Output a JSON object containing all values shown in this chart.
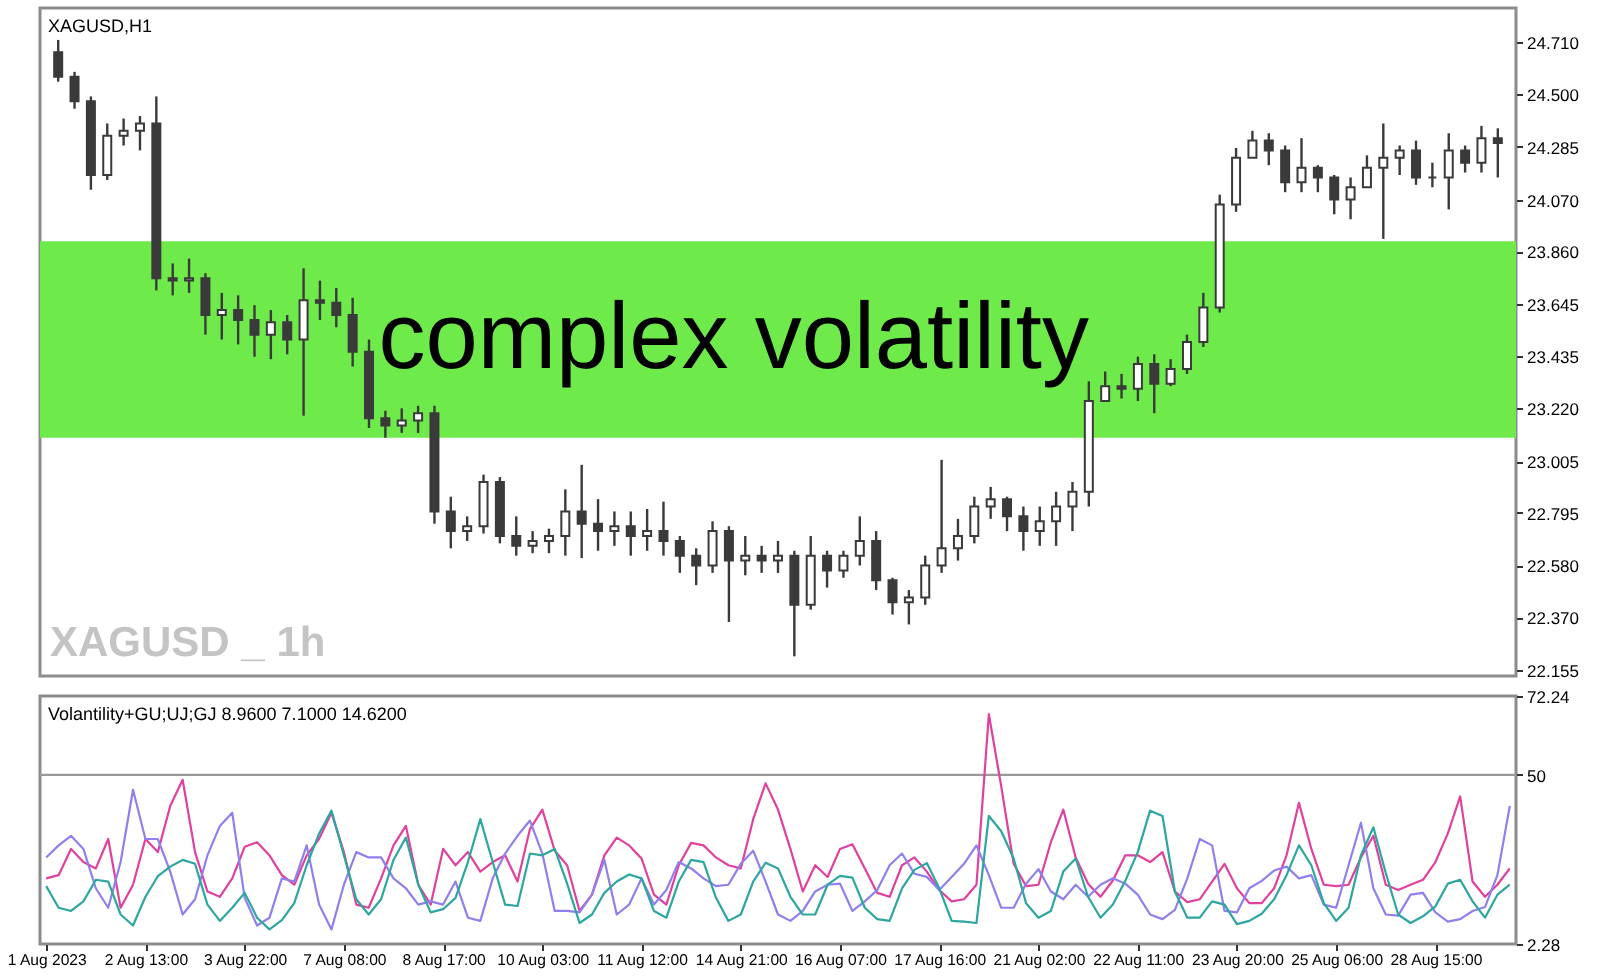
{
  "chart_data": [
    {
      "type": "candlestick",
      "title": "XAGUSD,H1",
      "tick_labels": "y",
      "categories": [
        null,
        null,
        null,
        null,
        null,
        null,
        null,
        null,
        null,
        null,
        null,
        null,
        null,
        null,
        null,
        null,
        null,
        null,
        null,
        null,
        null,
        null,
        null,
        null,
        null,
        null,
        null,
        null,
        null,
        null,
        null,
        null,
        null,
        null,
        null,
        null,
        null,
        null,
        null,
        null,
        null,
        null,
        null,
        null,
        null,
        null,
        null,
        null,
        null,
        null,
        null,
        null,
        null,
        null,
        null,
        null,
        null,
        null,
        null,
        null,
        null,
        null,
        null,
        null,
        null,
        null,
        null,
        null,
        null,
        null,
        null,
        null,
        null,
        null,
        null,
        null,
        null,
        null,
        null,
        null,
        null,
        null,
        null,
        null,
        null,
        null,
        null,
        null,
        null
      ],
      "series": [
        {
          "color": "#3a3a3a",
          "ohlc": [
            [
              24.67,
              24.72,
              24.55,
              24.57
            ],
            [
              24.57,
              24.59,
              24.44,
              24.47
            ],
            [
              24.47,
              24.49,
              24.11,
              24.17
            ],
            [
              24.17,
              24.38,
              24.15,
              24.33
            ],
            [
              24.33,
              24.4,
              24.29,
              24.35
            ],
            [
              24.35,
              24.41,
              24.27,
              24.38
            ],
            [
              24.38,
              24.49,
              23.7,
              23.75
            ],
            [
              23.75,
              23.81,
              23.68,
              23.74
            ],
            [
              23.74,
              23.83,
              23.69,
              23.75
            ],
            [
              23.75,
              23.77,
              23.52,
              23.6
            ],
            [
              23.6,
              23.69,
              23.5,
              23.62
            ],
            [
              23.62,
              23.68,
              23.48,
              23.58
            ],
            [
              23.58,
              23.64,
              23.43,
              23.52
            ],
            [
              23.52,
              23.62,
              23.42,
              23.57
            ],
            [
              23.57,
              23.6,
              23.44,
              23.5
            ],
            [
              23.5,
              23.79,
              23.19,
              23.66
            ],
            [
              23.66,
              23.74,
              23.58,
              23.65
            ],
            [
              23.65,
              23.71,
              23.55,
              23.6
            ],
            [
              23.6,
              23.67,
              23.39,
              23.45
            ],
            [
              23.45,
              23.5,
              23.14,
              23.18
            ],
            [
              23.18,
              23.21,
              23.1,
              23.15
            ],
            [
              23.15,
              23.22,
              23.12,
              23.17
            ],
            [
              23.17,
              23.23,
              23.12,
              23.2
            ],
            [
              23.2,
              23.23,
              22.75,
              22.8
            ],
            [
              22.8,
              22.86,
              22.65,
              22.72
            ],
            [
              22.72,
              22.78,
              22.68,
              22.74
            ],
            [
              22.74,
              22.95,
              22.71,
              22.92
            ],
            [
              22.92,
              22.94,
              22.67,
              22.7
            ],
            [
              22.7,
              22.78,
              22.62,
              22.66
            ],
            [
              22.66,
              22.72,
              22.63,
              22.68
            ],
            [
              22.68,
              22.73,
              22.63,
              22.7
            ],
            [
              22.7,
              22.89,
              22.62,
              22.8
            ],
            [
              22.8,
              22.99,
              22.61,
              22.75
            ],
            [
              22.75,
              22.85,
              22.64,
              22.72
            ],
            [
              22.72,
              22.8,
              22.66,
              22.74
            ],
            [
              22.74,
              22.8,
              22.62,
              22.7
            ],
            [
              22.7,
              22.81,
              22.64,
              22.72
            ],
            [
              22.72,
              22.84,
              22.62,
              22.68
            ],
            [
              22.68,
              22.7,
              22.55,
              22.62
            ],
            [
              22.62,
              22.65,
              22.5,
              22.58
            ],
            [
              22.58,
              22.76,
              22.55,
              22.72
            ],
            [
              22.72,
              22.74,
              22.35,
              22.6
            ],
            [
              22.6,
              22.7,
              22.54,
              22.62
            ],
            [
              22.62,
              22.66,
              22.55,
              22.6
            ],
            [
              22.6,
              22.68,
              22.55,
              22.62
            ],
            [
              22.62,
              22.64,
              22.21,
              22.42
            ],
            [
              22.42,
              22.7,
              22.4,
              22.62
            ],
            [
              22.62,
              22.64,
              22.49,
              22.56
            ],
            [
              22.56,
              22.64,
              22.53,
              22.62
            ],
            [
              22.62,
              22.78,
              22.58,
              22.68
            ],
            [
              22.68,
              22.72,
              22.48,
              22.52
            ],
            [
              22.52,
              22.53,
              22.38,
              22.43
            ],
            [
              22.43,
              22.48,
              22.34,
              22.45
            ],
            [
              22.45,
              22.62,
              22.42,
              22.58
            ],
            [
              22.58,
              23.01,
              22.55,
              22.65
            ],
            [
              22.65,
              22.77,
              22.6,
              22.7
            ],
            [
              22.7,
              22.86,
              22.67,
              22.82
            ],
            [
              22.82,
              22.9,
              22.77,
              22.85
            ],
            [
              22.85,
              22.86,
              22.72,
              22.78
            ],
            [
              22.78,
              22.82,
              22.64,
              22.72
            ],
            [
              22.72,
              22.82,
              22.66,
              22.76
            ],
            [
              22.76,
              22.88,
              22.66,
              22.82
            ],
            [
              22.82,
              22.92,
              22.72,
              22.88
            ],
            [
              22.88,
              23.33,
              22.82,
              23.25
            ],
            [
              23.25,
              23.37,
              23.25,
              23.31
            ],
            [
              23.31,
              23.36,
              23.26,
              23.3
            ],
            [
              23.3,
              23.43,
              23.25,
              23.4
            ],
            [
              23.4,
              23.44,
              23.2,
              23.32
            ],
            [
              23.32,
              23.42,
              23.31,
              23.38
            ],
            [
              23.38,
              23.52,
              23.36,
              23.49
            ],
            [
              23.49,
              23.69,
              23.47,
              23.63
            ],
            [
              23.63,
              24.09,
              23.61,
              24.05
            ],
            [
              24.05,
              24.28,
              24.02,
              24.24
            ],
            [
              24.24,
              24.35,
              24.24,
              24.31
            ],
            [
              24.31,
              24.34,
              24.21,
              24.27
            ],
            [
              24.27,
              24.29,
              24.1,
              24.14
            ],
            [
              24.14,
              24.32,
              24.1,
              24.2
            ],
            [
              24.2,
              24.21,
              24.1,
              24.16
            ],
            [
              24.16,
              24.17,
              24.01,
              24.07
            ],
            [
              24.07,
              24.16,
              23.99,
              24.12
            ],
            [
              24.12,
              24.25,
              24.12,
              24.2
            ],
            [
              24.2,
              24.38,
              23.91,
              24.24
            ],
            [
              24.24,
              24.29,
              24.17,
              24.27
            ],
            [
              24.27,
              24.31,
              24.13,
              24.16
            ],
            [
              24.16,
              24.22,
              24.12,
              24.16
            ],
            [
              24.16,
              24.34,
              24.03,
              24.27
            ],
            [
              24.27,
              24.29,
              24.18,
              24.22
            ],
            [
              24.22,
              24.37,
              24.18,
              24.32
            ],
            [
              24.32,
              24.36,
              24.16,
              24.3
            ]
          ]
        }
      ],
      "ylim": [
        22.13,
        24.85
      ],
      "yticks": [
        {
          "value": 22.155,
          "label": "22.155"
        },
        {
          "value": 22.37,
          "label": "22.370"
        },
        {
          "value": 22.58,
          "label": "22.580"
        },
        {
          "value": 22.795,
          "label": "22.795"
        },
        {
          "value": 23.005,
          "label": "23.005"
        },
        {
          "value": 23.22,
          "label": "23.220"
        },
        {
          "value": 23.435,
          "label": "23.435"
        },
        {
          "value": 23.645,
          "label": "23.645"
        },
        {
          "value": 23.86,
          "label": "23.860"
        },
        {
          "value": 24.07,
          "label": "24.070"
        },
        {
          "value": 24.285,
          "label": "24.285"
        },
        {
          "value": 24.5,
          "label": "24.500"
        },
        {
          "value": 24.71,
          "label": "24.710"
        }
      ],
      "bands": [
        {
          "axis": "y",
          "from": 23.1,
          "to": 23.9,
          "label": "complex volatility",
          "color": "#6eea4b"
        }
      ],
      "annotations": [
        "XAGUSD _ 1h"
      ]
    },
    {
      "type": "line",
      "title": "Volantility+GU;UJ;GJ 8.9600 7.1000 14.6200",
      "categories": [
        "1 Aug 2023",
        null,
        null,
        null,
        null,
        null,
        null,
        null,
        "2 Aug 13:00",
        null,
        null,
        null,
        null,
        null,
        null,
        null,
        "3 Aug 22:00",
        null,
        null,
        null,
        null,
        null,
        null,
        null,
        "7 Aug 08:00",
        null,
        null,
        null,
        null,
        null,
        null,
        null,
        "8 Aug 17:00",
        null,
        null,
        null,
        null,
        null,
        null,
        null,
        "10 Aug 03:00",
        null,
        null,
        null,
        null,
        null,
        null,
        null,
        "11 Aug 12:00",
        null,
        null,
        null,
        null,
        null,
        null,
        null,
        "14 Aug 21:00",
        null,
        null,
        null,
        null,
        null,
        null,
        null,
        "16 Aug 07:00",
        null,
        null,
        null,
        null,
        null,
        null,
        null,
        "17 Aug 16:00",
        null,
        null,
        null,
        null,
        null,
        null,
        null,
        "21 Aug 02:00",
        null,
        null,
        null,
        null,
        null,
        null,
        null,
        "22 Aug 11:00",
        null,
        null,
        null,
        null,
        null,
        null,
        null,
        "23 Aug 20:00",
        null,
        null,
        null,
        null,
        null,
        null,
        null,
        "25 Aug 06:00",
        null,
        null,
        null,
        null,
        null,
        null,
        null,
        "28 Aug 15:00",
        null,
        null,
        null,
        null,
        null,
        null
      ],
      "series": [
        {
          "color": "#e0409e",
          "values": [
            20.8,
            21.7,
            29.1,
            25.4,
            23.6,
            31.9,
            12.5,
            19.0,
            31.9,
            28.2,
            41.2,
            48.6,
            28.2,
            17.1,
            15.6,
            20.8,
            29.7,
            31.0,
            27.3,
            21.7,
            19.0,
            27.3,
            31.9,
            39.3,
            28.2,
            13.4,
            12.5,
            20.8,
            30.1,
            35.6,
            19.0,
            13.4,
            29.1,
            24.5,
            28.2,
            22.7,
            25.4,
            27.3,
            19.9,
            34.7,
            40.2,
            28.6,
            24.5,
            11.6,
            16.2,
            27.3,
            32.3,
            30.1,
            26.4,
            16.2,
            13.4,
            24.5,
            30.8,
            30.1,
            26.7,
            24.5,
            23.6,
            37.5,
            47.6,
            40.2,
            29.1,
            17.1,
            24.5,
            21.2,
            29.1,
            30.4,
            23.6,
            16.7,
            15.6,
            24.5,
            26.7,
            22.7,
            17.5,
            14.3,
            14.9,
            19.0,
            67.1,
            46.7,
            24.9,
            18.6,
            19.0,
            31.0,
            40.2,
            26.7,
            19.3,
            15.6,
            20.2,
            27.3,
            27.3,
            25.4,
            28.2,
            17.1,
            14.1,
            14.9,
            19.9,
            24.9,
            18.0,
            13.8,
            13.8,
            18.0,
            27.3,
            42.1,
            29.1,
            19.0,
            18.6,
            19.0,
            26.7,
            32.8,
            19.0,
            17.5,
            19.0,
            20.4,
            25.4,
            33.4,
            43.9,
            19.9,
            15.6,
            19.0,
            23.6
          ]
        },
        {
          "color": "#8f80ee",
          "values": [
            26.7,
            30.1,
            32.8,
            29.1,
            18.0,
            12.5,
            25.4,
            45.8,
            31.9,
            31.9,
            22.7,
            10.6,
            14.9,
            27.3,
            35.6,
            39.3,
            15.3,
            7.5,
            9.7,
            20.8,
            19.9,
            30.1,
            13.4,
            6.4,
            19.0,
            28.2,
            26.7,
            26.7,
            20.8,
            18.0,
            13.4,
            14.3,
            13.4,
            19.9,
            9.7,
            8.8,
            20.8,
            27.8,
            32.8,
            37.1,
            27.8,
            11.6,
            11.6,
            11.2,
            16.2,
            26.0,
            10.6,
            13.4,
            20.8,
            13.4,
            17.5,
            25.4,
            23.6,
            20.8,
            18.6,
            19.0,
            24.9,
            28.6,
            19.9,
            10.6,
            8.8,
            11.6,
            17.1,
            19.0,
            19.3,
            11.6,
            14.3,
            17.5,
            24.5,
            27.8,
            22.1,
            21.2,
            17.5,
            21.2,
            24.9,
            30.1,
            21.7,
            12.5,
            12.5,
            19.3,
            23.4,
            17.1,
            14.9,
            19.0,
            15.6,
            19.0,
            20.8,
            19.3,
            16.2,
            10.6,
            9.3,
            11.9,
            20.8,
            31.9,
            30.1,
            11.6,
            11.2,
            18.0,
            20.1,
            23.0,
            24.1,
            20.8,
            21.7,
            13.4,
            12.5,
            24.5,
            36.5,
            18.0,
            10.6,
            10.3,
            16.2,
            16.7,
            11.2,
            8.6,
            9.3,
            11.6,
            12.7,
            21.7,
            41.2
          ]
        },
        {
          "color": "#2ea6a0",
          "values": [
            18.6,
            12.5,
            11.6,
            14.3,
            20.4,
            19.9,
            10.6,
            7.5,
            15.6,
            21.4,
            24.1,
            26.0,
            24.9,
            13.4,
            8.8,
            12.5,
            16.7,
            9.7,
            6.4,
            9.0,
            13.8,
            24.5,
            33.4,
            39.9,
            27.3,
            14.9,
            10.6,
            14.9,
            26.0,
            32.3,
            19.0,
            11.2,
            12.1,
            15.3,
            25.4,
            37.5,
            25.4,
            13.4,
            13.0,
            27.8,
            27.3,
            29.1,
            19.3,
            8.2,
            10.6,
            16.7,
            19.9,
            21.9,
            20.8,
            11.6,
            9.7,
            19.9,
            26.0,
            25.4,
            15.3,
            8.8,
            10.6,
            19.9,
            25.2,
            23.6,
            15.6,
            10.6,
            10.6,
            19.0,
            21.5,
            21.0,
            12.5,
            9.3,
            8.8,
            18.0,
            23.2,
            25.1,
            18.0,
            8.8,
            8.6,
            8.2,
            38.4,
            34.1,
            26.4,
            13.8,
            9.7,
            11.6,
            22.7,
            26.4,
            15.6,
            9.7,
            13.4,
            20.1,
            28.2,
            39.9,
            38.4,
            17.1,
            9.7,
            9.7,
            14.3,
            13.4,
            7.9,
            8.8,
            10.8,
            14.9,
            21.7,
            30.1,
            24.5,
            13.8,
            8.8,
            12.5,
            27.3,
            35.2,
            22.3,
            10.6,
            8.2,
            10.1,
            12.9,
            19.3,
            20.4,
            14.3,
            9.7,
            16.2,
            19.0
          ]
        }
      ],
      "ylim": [
        2.28,
        72.24
      ],
      "yticks": [
        2.28,
        50,
        72.24
      ],
      "ref_lines": [
        {
          "axis": "y",
          "value": 50,
          "color": "#9a9a9a"
        }
      ]
    }
  ]
}
